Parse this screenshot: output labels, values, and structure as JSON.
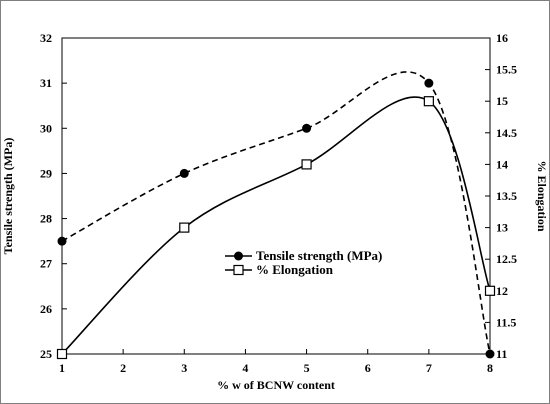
{
  "chart_data": {
    "type": "line",
    "x": [
      1,
      3,
      5,
      7,
      8
    ],
    "xlabel": "% w of BCNW content",
    "xlim": [
      1,
      8
    ],
    "xticks": [
      "1",
      "2",
      "3",
      "4",
      "5",
      "6",
      "7",
      "8"
    ],
    "ylabel": "Tensile strength (MPa)",
    "ylim": [
      25,
      32
    ],
    "yticks": [
      "25",
      "26",
      "27",
      "28",
      "29",
      "30",
      "31",
      "32"
    ],
    "y2label": "% Elongation",
    "y2lim": [
      11,
      16
    ],
    "y2ticks": [
      "11",
      "11.5",
      "12",
      "12.5",
      "13",
      "13.5",
      "14",
      "14.5",
      "15",
      "15.5",
      "16"
    ],
    "grid": false,
    "legend_position": "center",
    "series": [
      {
        "name": "Tensile strength (MPa)",
        "axis": "left",
        "marker": "filled-circle",
        "line": "dashed",
        "values": [
          27.5,
          29,
          30,
          31,
          25
        ]
      },
      {
        "name": "% Elongation",
        "axis": "right",
        "marker": "open-square",
        "line": "solid",
        "values": [
          11,
          13,
          14,
          15,
          12
        ]
      }
    ]
  }
}
